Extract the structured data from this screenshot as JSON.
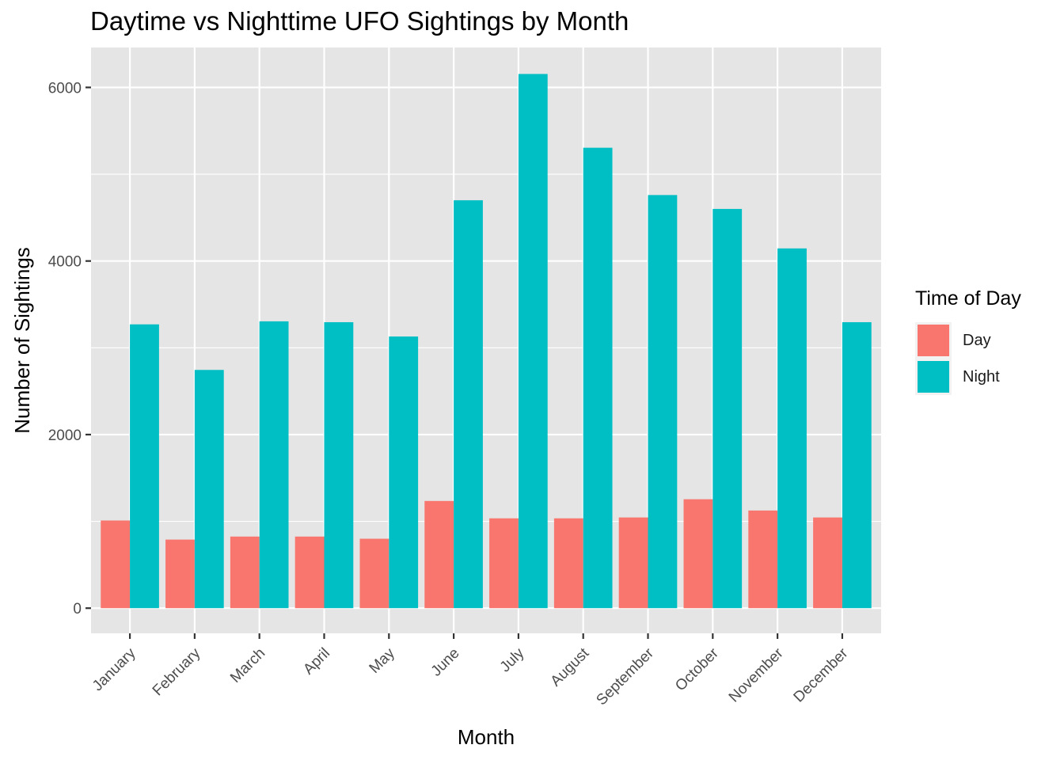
{
  "chart_data": {
    "type": "bar",
    "title": "Daytime vs Nighttime UFO Sightings by Month",
    "xlabel": "Month",
    "ylabel": "Number of Sightings",
    "categories": [
      "January",
      "February",
      "March",
      "April",
      "May",
      "June",
      "July",
      "August",
      "September",
      "October",
      "November",
      "December"
    ],
    "series": [
      {
        "name": "Day",
        "color": "#F8766D",
        "values": [
          1010,
          790,
          825,
          825,
          800,
          1235,
          1035,
          1035,
          1045,
          1255,
          1125,
          1045
        ]
      },
      {
        "name": "Night",
        "color": "#00BFC4",
        "values": [
          3270,
          2745,
          3305,
          3295,
          3130,
          4700,
          6155,
          5305,
          4760,
          4600,
          4145,
          3295
        ]
      }
    ],
    "ylim": [
      -290,
      6460
    ],
    "yticks": [
      0,
      2000,
      4000,
      6000
    ],
    "yticks_minor": [
      1000,
      3000,
      5000
    ],
    "grid": true,
    "legend": {
      "title": "Time of Day",
      "position": "right"
    },
    "panel_color": "#EBEBEB"
  }
}
